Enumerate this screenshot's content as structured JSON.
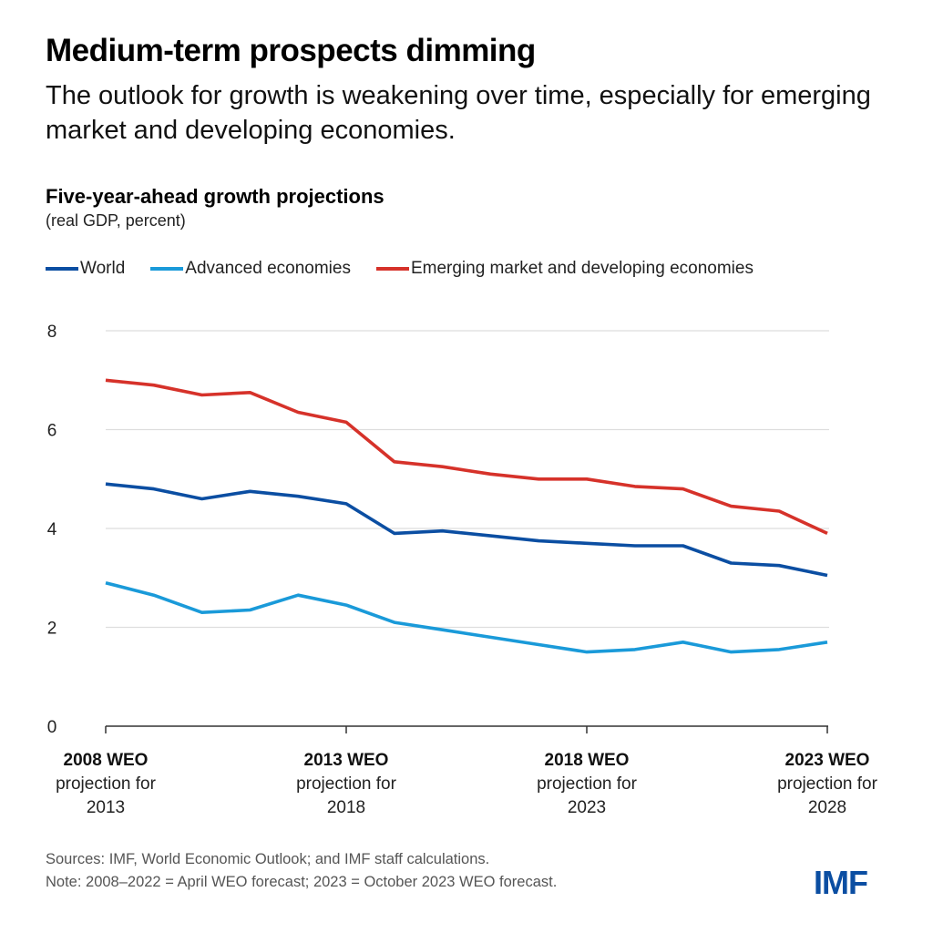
{
  "header": {
    "title": "Medium-term prospects dimming",
    "subtitle": "The outlook for growth is weakening over time, especially for emerging market and developing economies."
  },
  "chart_data": {
    "type": "line",
    "title": "Five-year-ahead growth projections",
    "subtitle": "(real GDP, percent)",
    "xlabel": "",
    "ylabel": "",
    "ylim": [
      0,
      8
    ],
    "yticks": [
      0,
      2,
      4,
      6,
      8
    ],
    "grid": true,
    "legend_position": "top-left",
    "x": [
      2008,
      2009,
      2010,
      2011,
      2012,
      2013,
      2014,
      2015,
      2016,
      2017,
      2018,
      2019,
      2020,
      2021,
      2022,
      2023
    ],
    "xticks": [
      {
        "x": 2008,
        "bold": "2008 WEO",
        "line1": "projection for",
        "line2": "2013"
      },
      {
        "x": 2013,
        "bold": "2013 WEO",
        "line1": "projection for",
        "line2": "2018"
      },
      {
        "x": 2018,
        "bold": "2018 WEO",
        "line1": "projection for",
        "line2": "2023"
      },
      {
        "x": 2023,
        "bold": "2023 WEO",
        "line1": "projection for",
        "line2": "2028"
      }
    ],
    "series": [
      {
        "name": "World",
        "color": "#0b4ea2",
        "values": [
          4.9,
          4.8,
          4.6,
          4.75,
          4.65,
          4.5,
          3.9,
          3.95,
          3.85,
          3.75,
          3.7,
          3.65,
          3.65,
          3.3,
          3.25,
          3.05
        ]
      },
      {
        "name": "Advanced economies",
        "color": "#1a9ad9",
        "values": [
          2.9,
          2.65,
          2.3,
          2.35,
          2.65,
          2.45,
          2.1,
          1.95,
          1.8,
          1.65,
          1.5,
          1.55,
          1.7,
          1.5,
          1.55,
          1.7
        ]
      },
      {
        "name": "Emerging market and developing economies",
        "color": "#d6322a",
        "values": [
          7.0,
          6.9,
          6.7,
          6.75,
          6.35,
          6.15,
          5.35,
          5.25,
          5.1,
          5.0,
          5.0,
          4.85,
          4.8,
          4.45,
          4.35,
          3.9
        ]
      }
    ]
  },
  "footer": {
    "sources": "Sources: IMF, World Economic Outlook; and IMF staff calculations.",
    "note": "Note: 2008–2022 = April WEO forecast; 2023 = October 2023 WEO forecast."
  },
  "logo": {
    "text": "IMF",
    "color": "#0b4ea2"
  }
}
